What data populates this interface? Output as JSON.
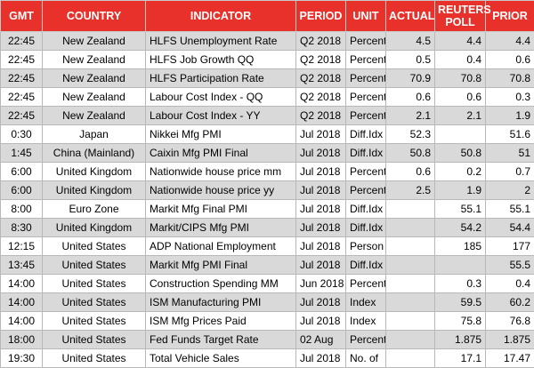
{
  "table": {
    "header": [
      "GMT",
      "COUNTRY",
      "INDICATOR",
      "PERIOD",
      "UNIT",
      "ACTUAL",
      "REUTERS POLL",
      "PRIOR"
    ],
    "rows": [
      [
        "22:45",
        "New Zealand",
        "HLFS Unemployment Rate",
        "Q2 2018",
        "Percent",
        "4.5",
        "4.4",
        "4.4"
      ],
      [
        "22:45",
        "New Zealand",
        "HLFS Job Growth QQ",
        "Q2 2018",
        "Percent",
        "0.5",
        "0.4",
        "0.6"
      ],
      [
        "22:45",
        "New Zealand",
        "HLFS Participation Rate",
        "Q2 2018",
        "Percent",
        "70.9",
        "70.8",
        "70.8"
      ],
      [
        "22:45",
        "New Zealand",
        "Labour Cost Index - QQ",
        "Q2 2018",
        "Percent",
        "0.6",
        "0.6",
        "0.3"
      ],
      [
        "22:45",
        "New Zealand",
        "Labour Cost Index - YY",
        "Q2 2018",
        "Percent",
        "2.1",
        "2.1",
        "1.9"
      ],
      [
        "0:30",
        "Japan",
        "Nikkei Mfg PMI",
        "Jul 2018",
        "Diff.Idx",
        "52.3",
        null,
        "51.6"
      ],
      [
        "1:45",
        "China (Mainland)",
        "Caixin Mfg PMI Final",
        "Jul 2018",
        "Diff.Idx",
        "50.8",
        "50.8",
        "51"
      ],
      [
        "6:00",
        "United Kingdom",
        "Nationwide house price mm",
        "Jul 2018",
        "Percent",
        "0.6",
        "0.2",
        "0.7"
      ],
      [
        "6:00",
        "United Kingdom",
        "Nationwide house price yy",
        "Jul 2018",
        "Percent",
        "2.5",
        "1.9",
        "2"
      ],
      [
        "8:00",
        "Euro Zone",
        "Markit Mfg Final PMI",
        "Jul 2018",
        "Diff.Idx",
        null,
        "55.1",
        "55.1"
      ],
      [
        "8:30",
        "United Kingdom",
        "Markit/CIPS Mfg PMI",
        "Jul 2018",
        "Diff.Idx",
        null,
        "54.2",
        "54.4"
      ],
      [
        "12:15",
        "United States",
        "ADP National Employment",
        "Jul 2018",
        "Person",
        null,
        "185",
        "177"
      ],
      [
        "13:45",
        "United States",
        "Markit Mfg PMI Final",
        "Jul 2018",
        "Diff.Idx",
        null,
        null,
        "55.5"
      ],
      [
        "14:00",
        "United States",
        "Construction Spending MM",
        "Jun 2018",
        "Percent",
        null,
        "0.3",
        "0.4"
      ],
      [
        "14:00",
        "United States",
        "ISM Manufacturing PMI",
        "Jul 2018",
        "Index",
        null,
        "59.5",
        "60.2"
      ],
      [
        "14:00",
        "United States",
        "ISM Mfg Prices Paid",
        "Jul 2018",
        "Index",
        null,
        "75.8",
        "76.8"
      ],
      [
        "18:00",
        "United States",
        "Fed Funds Target Rate",
        "02 Aug",
        "Percent",
        null,
        "1.875",
        "1.875"
      ],
      [
        "19:30",
        "United States",
        "Total Vehicle Sales",
        "Jul 2018",
        "No. of",
        null,
        "17.1",
        "17.47"
      ]
    ]
  }
}
